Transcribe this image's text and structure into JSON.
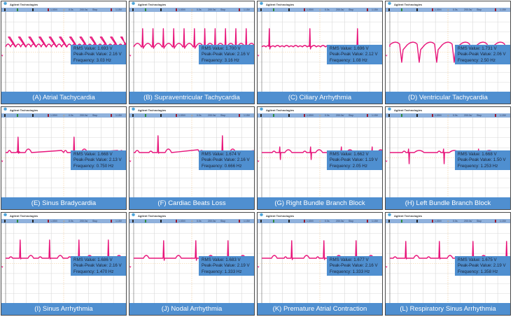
{
  "header": {
    "brand": "Agilent Technologies",
    "logo_icon": "agilent-spark-icon"
  },
  "status_bar": {
    "volts_per_div": "1.00V/",
    "time_offset": "0.0s",
    "time_per_div": "200.0s/",
    "run_state": "Stop",
    "trigger_level": "1.15V"
  },
  "colors": {
    "trace": "#e8157a",
    "caption_bg": "#4f8fd0",
    "status_bg": "#8fb1dc",
    "grid": "#d8d8d8",
    "border": "#4a4a4a"
  },
  "labels": {
    "rms": "RMS Value: ",
    "p2p": "Peak-Peak Value: ",
    "freq": "Frequency: "
  },
  "panels": [
    {
      "id": "A",
      "caption": "(A) Atrial Tachycardia",
      "rms": "RMS Value: 1.693 V",
      "p2p": "Peak-Peak Value: 2.16 V",
      "freq": "Frequency: 3.03 Hz",
      "wave": "atrial"
    },
    {
      "id": "B",
      "caption": "(B) Supraventricular Tachycardia",
      "rms": "RMS Value: 1.700 V",
      "p2p": "Peak-Peak Value: 2.16 V",
      "freq": "Frequency: 3.16 Hz",
      "wave": "svt"
    },
    {
      "id": "C",
      "caption": "(C) Ciliary Arrhythmia",
      "rms": "RMS Value: 1.696 V",
      "p2p": "Peak-Peak Value: 2.12 V",
      "freq": "Frequency: 1.08 Hz",
      "wave": "ciliary"
    },
    {
      "id": "D",
      "caption": "(D) Ventricular Tachycardia",
      "rms": "RMS Value: 1.731 V",
      "p2p": "Peak-Peak Value: 2.06 V",
      "freq": "Frequency: 2.50 Hz",
      "wave": "vt"
    },
    {
      "id": "E",
      "caption": "(E) Sinus Bradycardia",
      "rms": "RMS Value: 1.668 V",
      "p2p": "Peak-Peak Value: 2.13 V",
      "freq": "Frequency: 0.750 Hz",
      "wave": "brady"
    },
    {
      "id": "F",
      "caption": "(F) Cardiac Beats Loss",
      "rms": "RMS Value: 1.674 V",
      "p2p": "Peak-Peak Value: 2.16 V",
      "freq": "Frequency: 0.666 Hz",
      "wave": "loss"
    },
    {
      "id": "G",
      "caption": "(G) Right Bundle Branch Block",
      "rms": "RMS Value: 1.662 V",
      "p2p": "Peak-Peak Value: 1.19 V",
      "freq": "Frequency: 2.05 Hz",
      "wave": "rbbb"
    },
    {
      "id": "H",
      "caption": "(H) Left Bundle Branch Block",
      "rms": "RMS Value: 1.668 V",
      "p2p": "Peak-Peak Value: 1.50 V",
      "freq": "Frequency: 1.253 Hz",
      "wave": "lbbb"
    },
    {
      "id": "I",
      "caption": "(I) Sinus Arrhythmia",
      "rms": "RMS Value: 1.686 V",
      "p2p": "Peak-Peak Value: 2.16 V",
      "freq": "Frequency: 1.470 Hz",
      "wave": "sinus"
    },
    {
      "id": "J",
      "caption": "(J) Nodal Arrhythmia",
      "rms": "RMS Value: 1.683 V",
      "p2p": "Peak-Peak Value: 2.19 V",
      "freq": "Frequency: 1.333 Hz",
      "wave": "nodal"
    },
    {
      "id": "K",
      "caption": "(K) Premature Atrial Contraction",
      "rms": "RMS Value: 1.677 V",
      "p2p": "Peak-Peak Value: 2.16 V",
      "freq": "Frequency: 1.333 Hz",
      "wave": "pac"
    },
    {
      "id": "L",
      "caption": "(L) Respiratory Sinus Arrhythmia",
      "rms": "RMS Value: 1.675 V",
      "p2p": "Peak-Peak Value: 2.19 V",
      "freq": "Frequency: 1.358 Hz",
      "wave": "rsa"
    }
  ]
}
